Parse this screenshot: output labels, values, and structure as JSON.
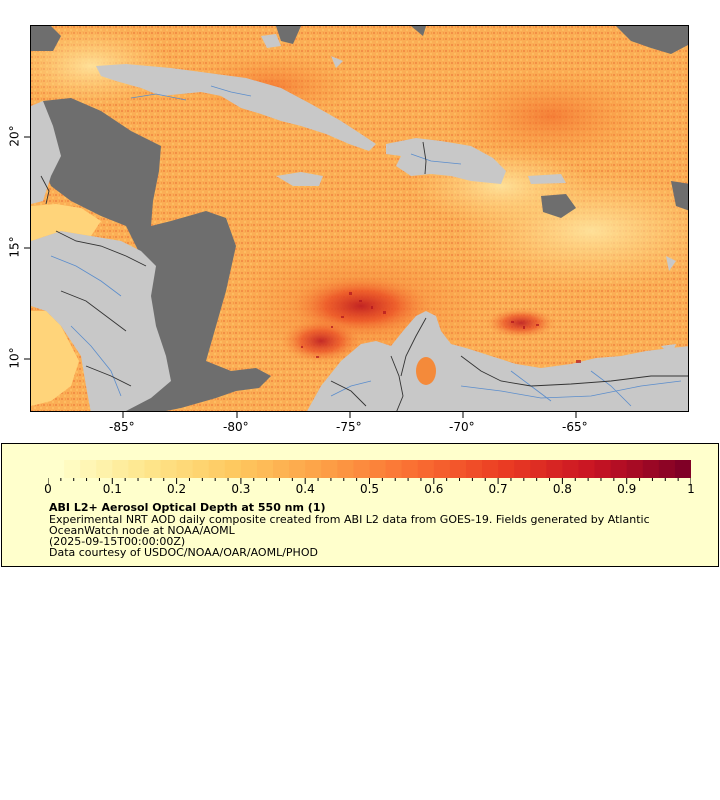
{
  "map": {
    "x_ticks": [
      "-85°",
      "-80°",
      "-75°",
      "-70°",
      "-65°"
    ],
    "y_ticks": [
      "20°",
      "15°",
      "10°"
    ],
    "colors": {
      "land": "#c8c8c8",
      "nodata": "#6e6e6e",
      "border": "#000000",
      "river": "#5b8dcc",
      "aod_low": "#ffe08a",
      "aod_mid": "#fb9d3f",
      "aod_high": "#e8401e",
      "aod_max": "#a3101e"
    }
  },
  "legend": {
    "ticks": [
      "0",
      "0.1",
      "0.2",
      "0.3",
      "0.4",
      "0.5",
      "0.6",
      "0.7",
      "0.8",
      "0.9",
      "1"
    ],
    "title": "ABI L2+ Aerosol Optical Depth at 550 nm (1)",
    "line1": "Experimental NRT AOD daily composite created from ABI L2 data from GOES-19. Fields generated by Atlantic",
    "line2": "OceanWatch node at NOAA/AOML",
    "line3": "(2025-09-15T00:00:00Z)",
    "line4": "Data courtesy of USDOC/NOAA/OAR/AOML/PHOD"
  }
}
